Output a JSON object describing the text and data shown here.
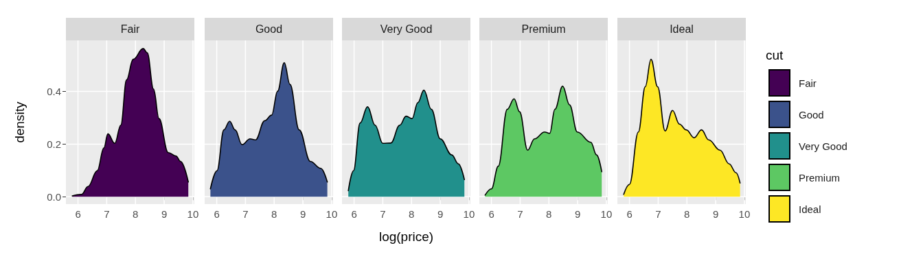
{
  "chart_data": [
    {
      "type": "area",
      "title": "Fair",
      "ylabel": "density",
      "xlim": [
        5.58,
        10.05
      ],
      "xticks": [
        6,
        7,
        8,
        9,
        10
      ],
      "ylim": [
        -0.028,
        0.594
      ],
      "yticks": [
        {
          "value": 0,
          "label": "0.0"
        },
        0.2,
        0.4
      ],
      "grid": true,
      "series": [
        {
          "name": "Fair",
          "color": "#440154",
          "x": [
            5.8,
            6.12,
            6.35,
            6.67,
            6.9,
            7.04,
            7.28,
            7.49,
            7.69,
            7.92,
            8.27,
            8.41,
            8.63,
            8.82,
            9.14,
            9.41,
            9.57,
            9.84
          ],
          "values": [
            0.003,
            0.009,
            0.039,
            0.099,
            0.185,
            0.239,
            0.203,
            0.272,
            0.444,
            0.522,
            0.563,
            0.547,
            0.409,
            0.297,
            0.168,
            0.155,
            0.134,
            0.056
          ]
        }
      ]
    },
    {
      "type": "area",
      "title": "Good",
      "xlim": [
        5.58,
        10.05
      ],
      "xticks": [
        6,
        7,
        8,
        9,
        10
      ],
      "ylim": [
        -0.028,
        0.594
      ],
      "yticks": [
        0,
        0.2,
        0.4
      ],
      "grid": true,
      "tick_labels": "x",
      "series": [
        {
          "name": "Good",
          "color": "#3b528b",
          "x": [
            5.78,
            6.01,
            6.25,
            6.45,
            6.64,
            6.88,
            7.16,
            7.35,
            7.67,
            7.91,
            8.12,
            8.35,
            8.55,
            8.87,
            9.26,
            9.62,
            9.85
          ],
          "values": [
            0.03,
            0.099,
            0.254,
            0.287,
            0.254,
            0.198,
            0.22,
            0.216,
            0.289,
            0.31,
            0.401,
            0.509,
            0.427,
            0.254,
            0.134,
            0.108,
            0.056
          ]
        }
      ]
    },
    {
      "type": "area",
      "title": "Very Good",
      "xlabel": "log(price)",
      "xlim": [
        5.58,
        10.05
      ],
      "xticks": [
        6,
        7,
        8,
        9,
        10
      ],
      "ylim": [
        -0.028,
        0.594
      ],
      "yticks": [
        0,
        0.2,
        0.4
      ],
      "grid": true,
      "tick_labels": "x",
      "series": [
        {
          "name": "Very Good",
          "color": "#21908c",
          "x": [
            5.8,
            5.98,
            6.21,
            6.47,
            6.73,
            7.0,
            7.28,
            7.59,
            7.81,
            8.02,
            8.22,
            8.43,
            8.69,
            9.0,
            9.4,
            9.63,
            9.84
          ],
          "values": [
            0.023,
            0.099,
            0.28,
            0.342,
            0.272,
            0.203,
            0.204,
            0.272,
            0.306,
            0.297,
            0.358,
            0.405,
            0.332,
            0.22,
            0.159,
            0.125,
            0.065
          ]
        }
      ]
    },
    {
      "type": "area",
      "title": "Premium",
      "xlim": [
        5.58,
        10.05
      ],
      "xticks": [
        6,
        7,
        8,
        9,
        10
      ],
      "ylim": [
        -0.028,
        0.594
      ],
      "yticks": [
        0,
        0.2,
        0.4
      ],
      "grid": true,
      "tick_labels": "x",
      "series": [
        {
          "name": "Premium",
          "color": "#5dc863",
          "x": [
            5.78,
            6.0,
            6.24,
            6.55,
            6.79,
            6.98,
            7.26,
            7.5,
            7.85,
            8.03,
            8.21,
            8.48,
            8.72,
            8.99,
            9.46,
            9.66,
            9.84
          ],
          "values": [
            0.006,
            0.03,
            0.116,
            0.332,
            0.372,
            0.323,
            0.177,
            0.22,
            0.246,
            0.241,
            0.332,
            0.42,
            0.349,
            0.246,
            0.207,
            0.159,
            0.095
          ]
        }
      ]
    },
    {
      "type": "area",
      "title": "Ideal",
      "legend": "right",
      "legend_title": "cut",
      "xlim": [
        5.58,
        10.05
      ],
      "xticks": [
        6,
        7,
        8,
        9,
        10
      ],
      "ylim": [
        -0.028,
        0.594
      ],
      "yticks": [
        0,
        0.2,
        0.4
      ],
      "grid": true,
      "tick_labels": "x",
      "series": [
        {
          "name": "Ideal",
          "color": "#fde725",
          "x": [
            5.8,
            6.0,
            6.31,
            6.55,
            6.75,
            6.98,
            7.24,
            7.5,
            7.74,
            7.98,
            8.25,
            8.51,
            8.76,
            9.15,
            9.47,
            9.71,
            9.85
          ],
          "values": [
            0.009,
            0.047,
            0.246,
            0.418,
            0.522,
            0.418,
            0.25,
            0.328,
            0.276,
            0.254,
            0.224,
            0.254,
            0.216,
            0.177,
            0.125,
            0.091,
            0.052
          ]
        }
      ]
    }
  ]
}
